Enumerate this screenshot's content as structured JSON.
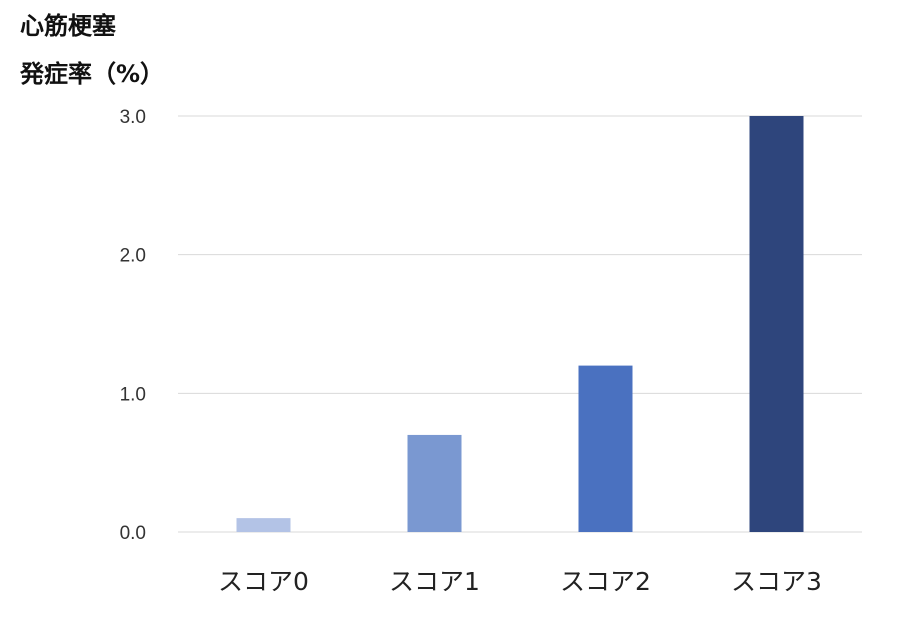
{
  "chart_data": {
    "type": "bar",
    "ylabel_lines": [
      "心筋梗塞",
      "発症率（%）"
    ],
    "categories": [
      "スコア0",
      "スコア1",
      "スコア2",
      "スコア3"
    ],
    "values": [
      0.1,
      0.7,
      1.2,
      3.0
    ],
    "colors": [
      "#b3c3e6",
      "#7a98d1",
      "#4a71c0",
      "#2e457c"
    ],
    "ylim": [
      0,
      3.0
    ],
    "yticks": [
      "0.0",
      "1.0",
      "2.0",
      "3.0"
    ],
    "grid": true,
    "gridColor": "#d9d9d9"
  }
}
